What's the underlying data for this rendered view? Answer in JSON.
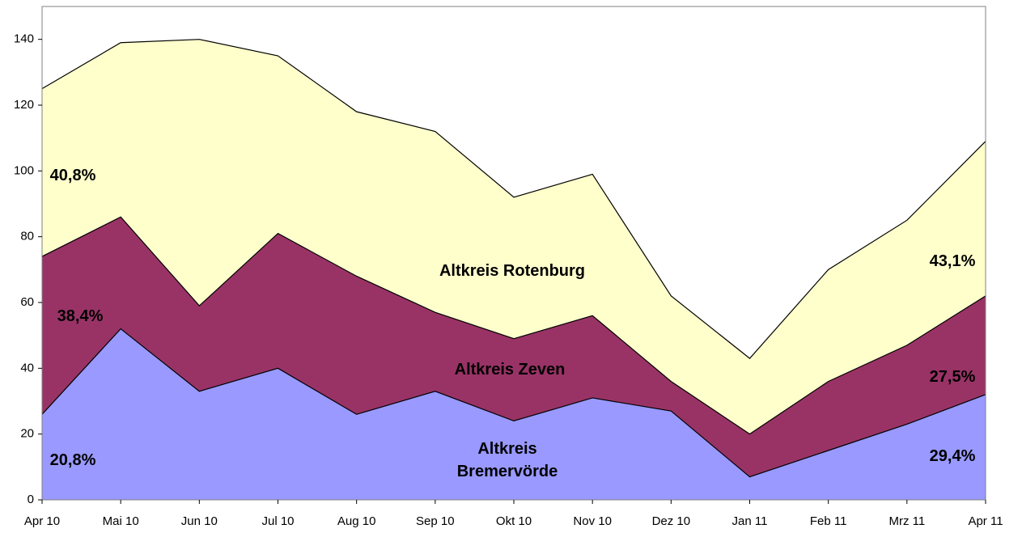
{
  "chart_data": {
    "type": "stacked_area",
    "categories": [
      "Apr 10",
      "Mai 10",
      "Jun 10",
      "Jul 10",
      "Aug 10",
      "Sep 10",
      "Okt 10",
      "Nov 10",
      "Dez 10",
      "Jan 11",
      "Feb 11",
      "Mrz 11",
      "Apr 11"
    ],
    "series": [
      {
        "name": "Altkreis Bremervörde",
        "color": "#9999ff",
        "values": [
          26,
          52,
          33,
          40,
          26,
          33,
          24,
          31,
          27,
          7,
          15,
          23,
          32
        ],
        "start_label": "20,8%",
        "end_label": "29,4%"
      },
      {
        "name": "Altkreis Zeven",
        "color": "#993366",
        "values": [
          48,
          34,
          26,
          41,
          42,
          24,
          25,
          25,
          9,
          13,
          21,
          24,
          30
        ],
        "start_label": "38,4%",
        "end_label": "27,5%"
      },
      {
        "name": "Altkreis Rotenburg",
        "color": "#ffffcc",
        "values": [
          51,
          53,
          81,
          54,
          50,
          55,
          43,
          43,
          26,
          23,
          34,
          38,
          47
        ],
        "start_label": "40,8%",
        "end_label": "43,1%"
      }
    ],
    "ylim": [
      0,
      150
    ],
    "yticks": [
      0,
      20,
      40,
      60,
      80,
      100,
      120,
      140
    ],
    "grid": false
  }
}
